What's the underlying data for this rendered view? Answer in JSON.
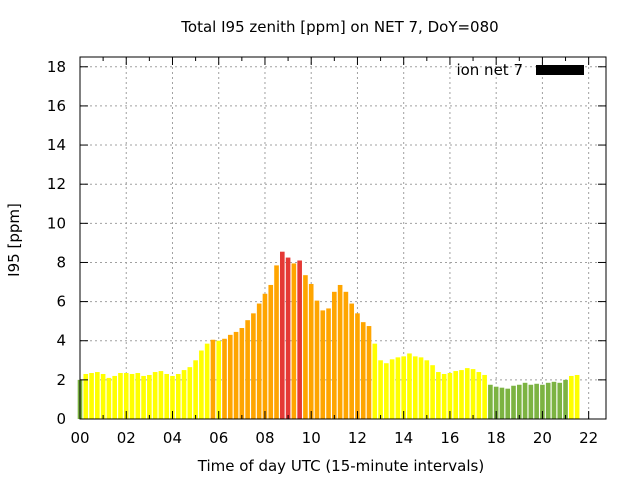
{
  "chart_data": {
    "type": "bar",
    "title": "Total I95 zenith [ppm] on NET 7, DoY=080",
    "xlabel": "Time of day UTC (15-minute intervals)",
    "ylabel": "I95 [ppm]",
    "xlim": [
      0,
      22.75
    ],
    "ylim": [
      0,
      18.5
    ],
    "x_ticks": [
      "00",
      "02",
      "04",
      "06",
      "08",
      "10",
      "12",
      "14",
      "16",
      "18",
      "20",
      "22"
    ],
    "y_ticks": [
      "0",
      "2",
      "4",
      "6",
      "8",
      "10",
      "12",
      "14",
      "16",
      "18"
    ],
    "grid": true,
    "legend": {
      "position": "top-right",
      "label": "ion net 7",
      "color": "#000000"
    },
    "bar_interval_hours": 0.25,
    "color_thresholds": [
      {
        "max": 2.0,
        "color": "#7cb342"
      },
      {
        "max": 4.0,
        "color": "#ffff00"
      },
      {
        "max": 8.0,
        "color": "#ffa500"
      },
      {
        "max": 99,
        "color": "#e53935"
      }
    ],
    "values": [
      2.0,
      2.3,
      2.35,
      2.4,
      2.3,
      2.1,
      2.2,
      2.35,
      2.35,
      2.3,
      2.35,
      2.2,
      2.25,
      2.4,
      2.45,
      2.3,
      2.2,
      2.3,
      2.5,
      2.65,
      3.0,
      3.5,
      3.85,
      4.05,
      4.0,
      4.1,
      4.3,
      4.45,
      4.65,
      5.05,
      5.4,
      5.9,
      6.4,
      6.85,
      7.85,
      8.55,
      8.25,
      7.95,
      8.1,
      7.35,
      6.9,
      6.05,
      5.55,
      5.65,
      6.5,
      6.85,
      6.5,
      5.9,
      5.4,
      4.95,
      4.75,
      3.85,
      3.0,
      2.85,
      3.05,
      3.15,
      3.2,
      3.35,
      3.2,
      3.15,
      3.0,
      2.75,
      2.4,
      2.3,
      2.35,
      2.45,
      2.5,
      2.6,
      2.55,
      2.4,
      2.25,
      1.75,
      1.65,
      1.6,
      1.55,
      1.7,
      1.75,
      1.85,
      1.75,
      1.8,
      1.75,
      1.85,
      1.9,
      1.85,
      2.0,
      2.2,
      2.25
    ]
  }
}
